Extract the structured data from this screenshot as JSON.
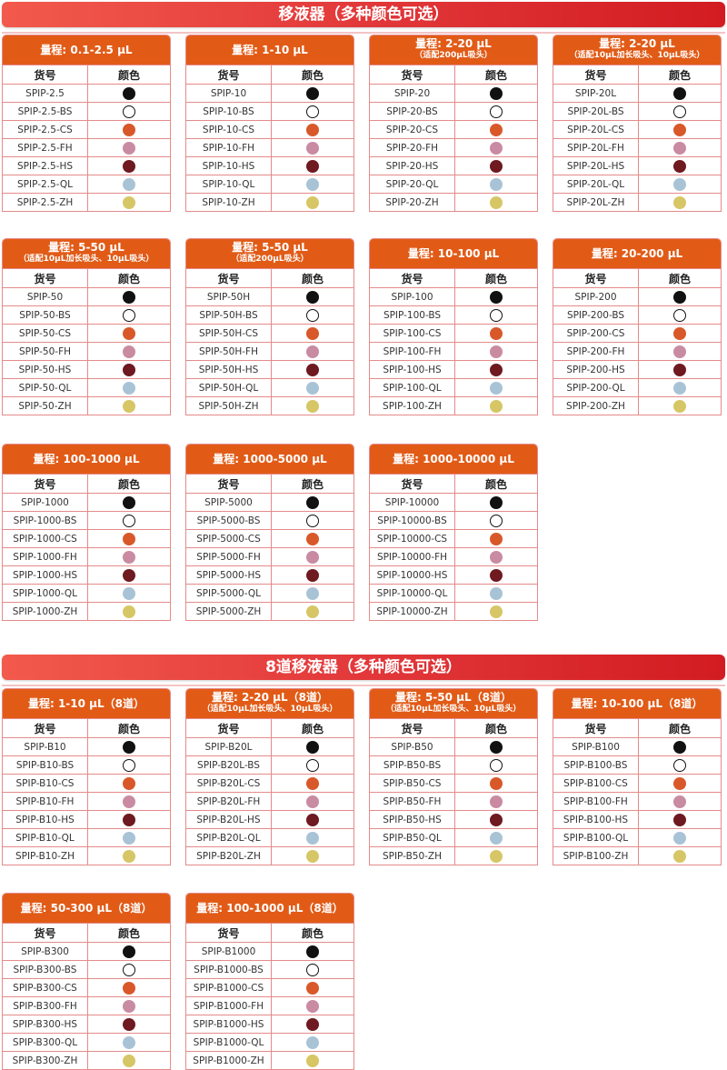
{
  "sections": [
    {
      "title": "移液器（多种颜色可选）"
    },
    {
      "title": "8道移液器（多种颜色可选）"
    }
  ],
  "columns": {
    "code": "货号",
    "color": "颜色"
  },
  "colors": [
    {
      "suffix": "",
      "name": "black",
      "hex": "#111111"
    },
    {
      "suffix": "-BS",
      "name": "white",
      "hex": "#ffffff"
    },
    {
      "suffix": "-CS",
      "name": "orange",
      "hex": "#d9582a"
    },
    {
      "suffix": "-FH",
      "name": "pink",
      "hex": "#c98ba2"
    },
    {
      "suffix": "-HS",
      "name": "maroon",
      "hex": "#6e1a20"
    },
    {
      "suffix": "-QL",
      "name": "light-blue",
      "hex": "#a9c3d6"
    },
    {
      "suffix": "-ZH",
      "name": "yellow",
      "hex": "#d7c666"
    }
  ],
  "tables": [
    {
      "title": "量程: 0.1-2.5 μL",
      "sub": "",
      "base": "SPIP-2.5",
      "codes": [
        "SPIP-2.5",
        "SPIP-2.5-BS",
        "SPIP-2.5-CS",
        "SPIP-2.5-FH",
        "SPIP-2.5-HS",
        "SPIP-2.5-QL",
        "SPIP-2.5-ZH"
      ]
    },
    {
      "title": "量程: 1-10 μL",
      "sub": "",
      "codes": [
        "SPIP-10",
        "SPIP-10-BS",
        "SPIP-10-CS",
        "SPIP-10-FH",
        "SPIP-10-HS",
        "SPIP-10-QL",
        "SPIP-10-ZH"
      ]
    },
    {
      "title": "量程: 2-20 μL",
      "sub": "（适配200μL吸头）",
      "codes": [
        "SPIP-20",
        "SPIP-20-BS",
        "SPIP-20-CS",
        "SPIP-20-FH",
        "SPIP-20-HS",
        "SPIP-20-QL",
        "SPIP-20-ZH"
      ]
    },
    {
      "title": "量程: 2-20 μL",
      "sub": "（适配10μL加长吸头、10μL吸头）",
      "codes": [
        "SPIP-20L",
        "SPIP-20L-BS",
        "SPIP-20L-CS",
        "SPIP-20L-FH",
        "SPIP-20L-HS",
        "SPIP-20L-QL",
        "SPIP-20L-ZH"
      ]
    },
    {
      "title": "量程: 5-50 μL",
      "sub": "（适配10μL加长吸头、10μL吸头）",
      "codes": [
        "SPIP-50",
        "SPIP-50-BS",
        "SPIP-50-CS",
        "SPIP-50-FH",
        "SPIP-50-HS",
        "SPIP-50-QL",
        "SPIP-50-ZH"
      ]
    },
    {
      "title": "量程: 5-50 μL",
      "sub": "（适配200μL吸头）",
      "codes": [
        "SPIP-50H",
        "SPIP-50H-BS",
        "SPIP-50H-CS",
        "SPIP-50H-FH",
        "SPIP-50H-HS",
        "SPIP-50H-QL",
        "SPIP-50H-ZH"
      ]
    },
    {
      "title": "量程: 10-100 μL",
      "sub": "",
      "codes": [
        "SPIP-100",
        "SPIP-100-BS",
        "SPIP-100-CS",
        "SPIP-100-FH",
        "SPIP-100-HS",
        "SPIP-100-QL",
        "SPIP-100-ZH"
      ]
    },
    {
      "title": "量程: 20-200 μL",
      "sub": "",
      "codes": [
        "SPIP-200",
        "SPIP-200-BS",
        "SPIP-200-CS",
        "SPIP-200-FH",
        "SPIP-200-HS",
        "SPIP-200-QL",
        "SPIP-200-ZH"
      ]
    },
    {
      "title": "量程: 100-1000 μL",
      "sub": "",
      "codes": [
        "SPIP-1000",
        "SPIP-1000-BS",
        "SPIP-1000-CS",
        "SPIP-1000-FH",
        "SPIP-1000-HS",
        "SPIP-1000-QL",
        "SPIP-1000-ZH"
      ]
    },
    {
      "title": "量程: 1000-5000 μL",
      "sub": "",
      "codes": [
        "SPIP-5000",
        "SPIP-5000-BS",
        "SPIP-5000-CS",
        "SPIP-5000-FH",
        "SPIP-5000-HS",
        "SPIP-5000-QL",
        "SPIP-5000-ZH"
      ]
    },
    {
      "title": "量程: 1000-10000 μL",
      "sub": "",
      "codes": [
        "SPIP-10000",
        "SPIP-10000-BS",
        "SPIP-10000-CS",
        "SPIP-10000-FH",
        "SPIP-10000-HS",
        "SPIP-10000-QL",
        "SPIP-10000-ZH"
      ]
    },
    {
      "title": "量程: 1-10 μL（8道）",
      "sub": "",
      "codes": [
        "SPIP-B10",
        "SPIP-B10-BS",
        "SPIP-B10-CS",
        "SPIP-B10-FH",
        "SPIP-B10-HS",
        "SPIP-B10-QL",
        "SPIP-B10-ZH"
      ]
    },
    {
      "title": "量程: 2-20 μL（8道）",
      "sub": "（适配10μL加长吸头、10μL吸头）",
      "codes": [
        "SPIP-B20L",
        "SPIP-B20L-BS",
        "SPIP-B20L-CS",
        "SPIP-B20L-FH",
        "SPIP-B20L-HS",
        "SPIP-B20L-QL",
        "SPIP-B20L-ZH"
      ]
    },
    {
      "title": "量程: 5-50 μL（8道）",
      "sub": "（适配10μL加长吸头、10μL吸头）",
      "codes": [
        "SPIP-B50",
        "SPIP-B50-BS",
        "SPIP-B50-CS",
        "SPIP-B50-FH",
        "SPIP-B50-HS",
        "SPIP-B50-QL",
        "SPIP-B50-ZH"
      ]
    },
    {
      "title": "量程: 10-100 μL（8道）",
      "sub": "",
      "codes": [
        "SPIP-B100",
        "SPIP-B100-BS",
        "SPIP-B100-CS",
        "SPIP-B100-FH",
        "SPIP-B100-HS",
        "SPIP-B100-QL",
        "SPIP-B100-ZH"
      ]
    },
    {
      "title": "量程: 50-300 μL（8道）",
      "sub": "",
      "codes": [
        "SPIP-B300",
        "SPIP-B300-BS",
        "SPIP-B300-CS",
        "SPIP-B300-FH",
        "SPIP-B300-HS",
        "SPIP-B300-QL",
        "SPIP-B300-ZH"
      ]
    },
    {
      "title": "量程: 100-1000 μL（8道）",
      "sub": "",
      "codes": [
        "SPIP-B1000",
        "SPIP-B1000-BS",
        "SPIP-B1000-CS",
        "SPIP-B1000-FH",
        "SPIP-B1000-HS",
        "SPIP-B1000-QL",
        "SPIP-B1000-ZH"
      ]
    }
  ]
}
